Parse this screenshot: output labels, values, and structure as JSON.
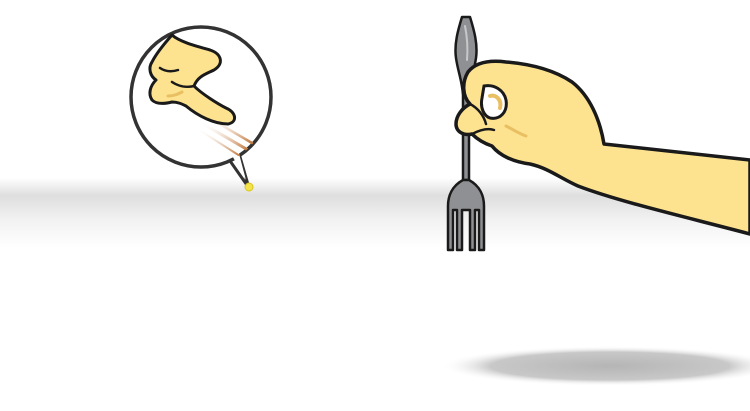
{
  "scene": {
    "colors": {
      "background": "#ffffff",
      "table_band": "#e4e4e4",
      "skin": "#fde38f",
      "skin_shadow": "#e9bf63",
      "outline": "#1a1a1a",
      "fork": "#8e9093",
      "fork_highlight": "#c5c7c9",
      "callout_ring": "#333333",
      "spark": "#f3e24a",
      "shadow": "#bdbdbd",
      "motion_streak": "#c0763a"
    },
    "icons": {
      "callout": "magnifier-callout-icon",
      "pointing_hand": "pointing-hand-icon",
      "fork": "fork-icon",
      "holding_hand": "holding-hand-icon"
    }
  }
}
